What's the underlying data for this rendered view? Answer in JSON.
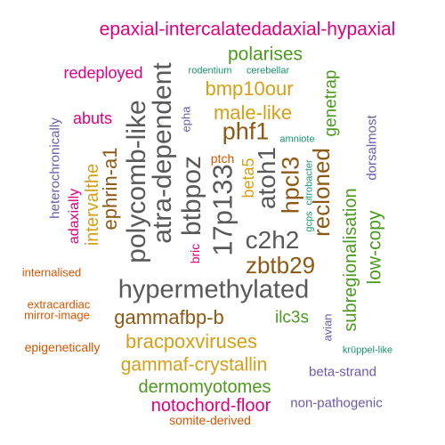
{
  "colors": {
    "gray": "#595959",
    "brown": "#8c5a14",
    "gold": "#d4a017",
    "green": "#4d9a1f",
    "magenta": "#e0007f",
    "purple": "#6b5ba8",
    "orange": "#d45500",
    "teal": "#1a9470"
  },
  "words": [
    {
      "text": "epaxial-intercalatedadaxial-hypaxial",
      "color": "magenta"
    },
    {
      "text": "polarises",
      "color": "green"
    },
    {
      "text": "rodentium",
      "color": "teal"
    },
    {
      "text": "cerebellar",
      "color": "teal"
    },
    {
      "text": "redeployed",
      "color": "magenta"
    },
    {
      "text": "bmp10our",
      "color": "gold"
    },
    {
      "text": "male-like",
      "color": "gold"
    },
    {
      "text": "abuts",
      "color": "magenta"
    },
    {
      "text": "phf1",
      "color": "brown"
    },
    {
      "text": "amniote",
      "color": "teal"
    },
    {
      "text": "ptch",
      "color": "orange"
    },
    {
      "text": "c2h2",
      "color": "gray"
    },
    {
      "text": "zbtb29",
      "color": "brown"
    },
    {
      "text": "hypermethylated",
      "color": "gray"
    },
    {
      "text": "internalised",
      "color": "orange"
    },
    {
      "text": "extracardiac",
      "color": "orange"
    },
    {
      "text": "mirror-image",
      "color": "orange"
    },
    {
      "text": "gammafbp-b",
      "color": "brown"
    },
    {
      "text": "ilc3s",
      "color": "green"
    },
    {
      "text": "bracpoxviruses",
      "color": "gold"
    },
    {
      "text": "epigenetically",
      "color": "orange"
    },
    {
      "text": "krüppel-like",
      "color": "teal"
    },
    {
      "text": "gammaf-crystallin",
      "color": "gold"
    },
    {
      "text": "beta-strand",
      "color": "purple"
    },
    {
      "text": "dermomyotomes",
      "color": "green"
    },
    {
      "text": "notochord-floor",
      "color": "magenta"
    },
    {
      "text": "non-pathogenic",
      "color": "purple"
    },
    {
      "text": "somite-derived",
      "color": "orange"
    },
    {
      "text": "polycomb-like",
      "color": "gray"
    },
    {
      "text": "atra-dependent",
      "color": "gray"
    },
    {
      "text": "btbpoz",
      "color": "gray"
    },
    {
      "text": "17p133",
      "color": "gray"
    },
    {
      "text": "atoh1",
      "color": "gray"
    },
    {
      "text": "hpcl3",
      "color": "brown"
    },
    {
      "text": "recloned",
      "color": "brown"
    },
    {
      "text": "genetrap",
      "color": "green"
    },
    {
      "text": "subregionalisation",
      "color": "green"
    },
    {
      "text": "low-copy",
      "color": "green"
    },
    {
      "text": "dorsalmost",
      "color": "purple"
    },
    {
      "text": "heterochronically",
      "color": "purple"
    },
    {
      "text": "adaxially",
      "color": "magenta"
    },
    {
      "text": "intervalthe",
      "color": "gold"
    },
    {
      "text": "ephrin-a1",
      "color": "brown"
    },
    {
      "text": "epha",
      "color": "purple"
    },
    {
      "text": "beta5",
      "color": "gold"
    },
    {
      "text": "bric",
      "color": "magenta"
    },
    {
      "text": "gcps",
      "color": "teal"
    },
    {
      "text": "citrobacter",
      "color": "teal"
    },
    {
      "text": "avian",
      "color": "purple"
    }
  ]
}
